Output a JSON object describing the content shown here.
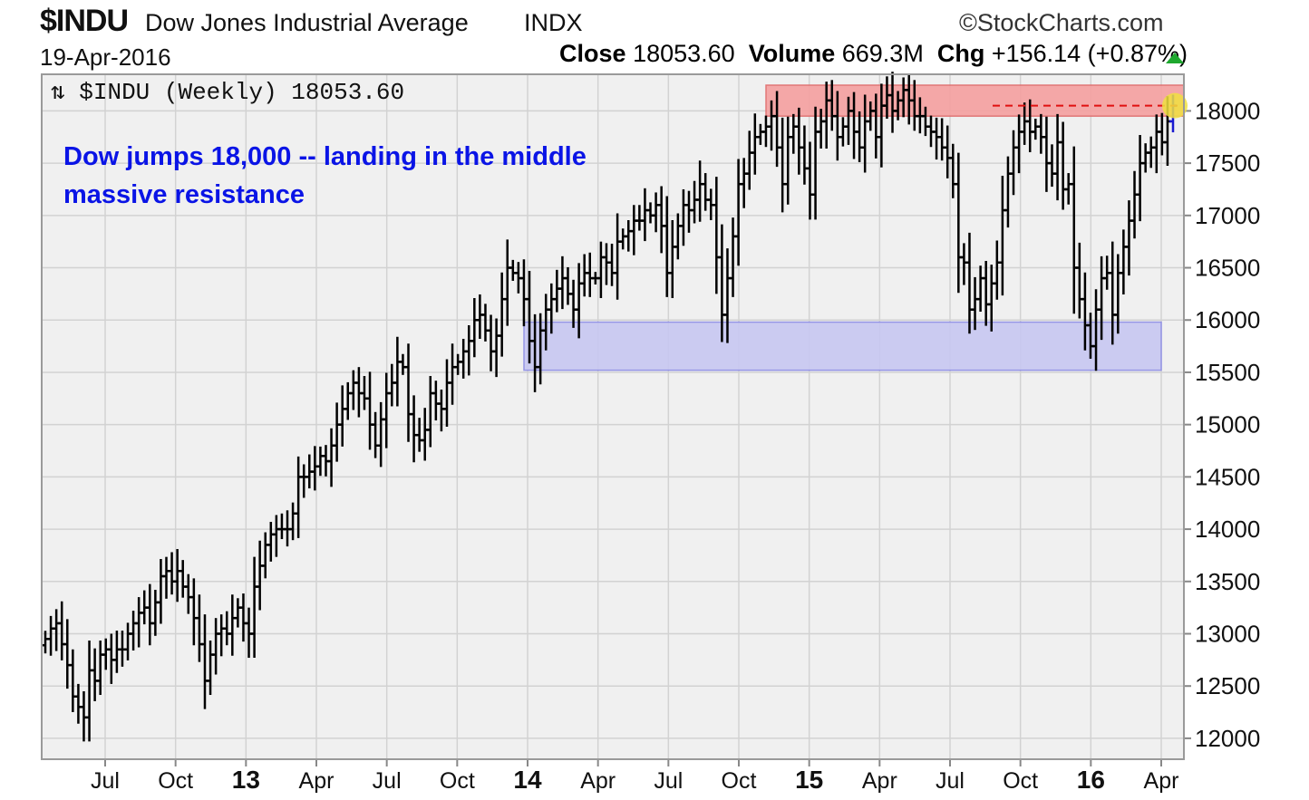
{
  "header": {
    "symbol": "$INDU",
    "name": "Dow Jones Industrial Average",
    "exchange": "INDX",
    "brand": "©StockCharts.com",
    "date": "19-Apr-2016",
    "close_label": "Close",
    "close_value": "18053.60",
    "volume_label": "Volume",
    "volume_value": "669.3M",
    "chg_label": "Chg",
    "chg_value": "+156.14 (+0.87%)"
  },
  "plot_label": "⇅ $INDU (Weekly) 18053.60",
  "annotation": {
    "line1": "Dow jumps 18,000 -- landing in the middle",
    "line2": "massive resistance"
  },
  "colors": {
    "bars": "#000000",
    "resistance_zone": "#f5a0a0",
    "support_zone": "#c8c8f2",
    "annotation": "#0a14e6",
    "close_line": "#e01010",
    "last_marker": "#f0e040",
    "up_arrow": "#1ea82e"
  },
  "chart_data": {
    "type": "ohlc",
    "title": "$INDU (Weekly) 18053.60",
    "ylim": [
      11800,
      18350
    ],
    "y_ticks": [
      12000,
      12500,
      13000,
      13500,
      14000,
      14500,
      15000,
      15500,
      16000,
      16500,
      17000,
      17500,
      18000
    ],
    "x_ticks": [
      {
        "label": "Jul",
        "bold": false
      },
      {
        "label": "Oct",
        "bold": false
      },
      {
        "label": "13",
        "bold": true
      },
      {
        "label": "Apr",
        "bold": false
      },
      {
        "label": "Jul",
        "bold": false
      },
      {
        "label": "Oct",
        "bold": false
      },
      {
        "label": "14",
        "bold": true
      },
      {
        "label": "Apr",
        "bold": false
      },
      {
        "label": "Jul",
        "bold": false
      },
      {
        "label": "Oct",
        "bold": false
      },
      {
        "label": "15",
        "bold": true
      },
      {
        "label": "Apr",
        "bold": false
      },
      {
        "label": "Jul",
        "bold": false
      },
      {
        "label": "Oct",
        "bold": false
      },
      {
        "label": "16",
        "bold": true
      },
      {
        "label": "Apr",
        "bold": false
      }
    ],
    "weekly_close": [
      12950,
      13050,
      13100,
      12900,
      12700,
      12400,
      12300,
      12200,
      12650,
      12550,
      12800,
      12850,
      12750,
      12850,
      12850,
      13000,
      13100,
      13200,
      13250,
      13100,
      13300,
      13550,
      13600,
      13500,
      13600,
      13450,
      13350,
      13150,
      12900,
      12550,
      12800,
      13000,
      13050,
      13000,
      13150,
      13250,
      13100,
      13000,
      13450,
      13650,
      13850,
      13950,
      14000,
      14000,
      14000,
      14150,
      14500,
      14500,
      14550,
      14600,
      14700,
      14650,
      14800,
      15000,
      15150,
      15300,
      15400,
      15300,
      15250,
      15000,
      14800,
      15050,
      15300,
      15400,
      15600,
      15550,
      15100,
      14900,
      14850,
      14950,
      15300,
      15200,
      15150,
      15400,
      15550,
      15600,
      15700,
      15800,
      16000,
      16050,
      15900,
      15700,
      15850,
      16200,
      16500,
      16450,
      16400,
      16200,
      15800,
      15550,
      15900,
      16100,
      16200,
      16300,
      16400,
      16250,
      16100,
      16350,
      16450,
      16400,
      16400,
      16600,
      16550,
      16450,
      16750,
      16800,
      16850,
      16950,
      16950,
      17050,
      17000,
      17100,
      16900,
      16450,
      16700,
      16900,
      17100,
      17050,
      17150,
      17300,
      17150,
      17100,
      16600,
      16050,
      16400,
      16800,
      17300,
      17400,
      17600,
      17750,
      17800,
      17850,
      17950,
      17650,
      17300,
      17750,
      17850,
      17650,
      17450,
      17200,
      17800,
      17900,
      18100,
      17950,
      17750,
      17850,
      18000,
      17800,
      17650,
      17900,
      18000,
      17750,
      18050,
      18150,
      18000,
      18100,
      18200,
      18100,
      17950,
      17950,
      17850,
      17800,
      17750,
      17650,
      17550,
      17300,
      16600,
      16550,
      16100,
      16200,
      16400,
      16150,
      16350,
      16550,
      17050,
      17400,
      17650,
      17800,
      17900,
      17800,
      17850,
      17750,
      17500,
      17400,
      17700,
      17250,
      17300,
      16500,
      16200,
      15950,
      15750,
      16100,
      16400,
      16450,
      16050,
      16450,
      16700,
      16950,
      17200,
      17500,
      17600,
      17650,
      17800,
      17700,
      17900,
      18050
    ]
  }
}
